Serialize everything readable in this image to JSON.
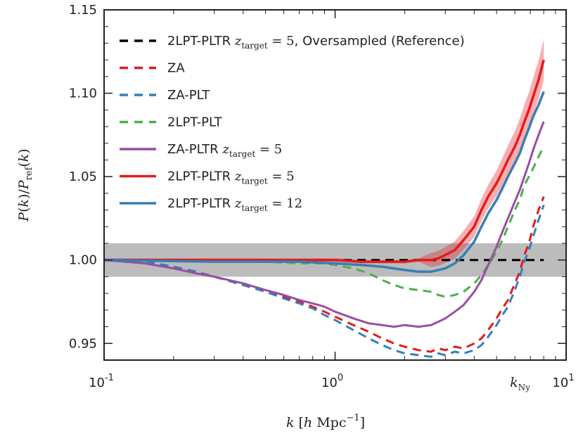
{
  "chart_data": {
    "type": "line",
    "x_scale": "log",
    "xlim": [
      0.1,
      10
    ],
    "ylim": [
      0.94,
      1.15
    ],
    "xlabel": "k [h Mpc^-1]",
    "ylabel": "P(k)/P_ref(k)",
    "x_tick_labels": [
      "10^-1",
      "10^0",
      "10^1"
    ],
    "x_tick_label_parts": [
      {
        "base": "10",
        "exp": "-1"
      },
      {
        "base": "10",
        "exp": "0"
      },
      {
        "base": "10",
        "exp": "1"
      }
    ],
    "x_tick_values": [
      0.1,
      1,
      10
    ],
    "y_ticks": [
      0.95,
      1.0,
      1.05,
      1.1,
      1.15
    ],
    "y_tick_labels": [
      "0.95",
      "1.00",
      "1.05",
      "1.10",
      "1.15"
    ],
    "annotation": {
      "text": "k_Ny",
      "x": 6.5
    },
    "band": {
      "ymin": 0.99,
      "ymax": 1.01,
      "color": "#b0b0b0"
    },
    "legend": [
      {
        "label": "2LPT-PLTR",
        "math": "z",
        "sub": "target",
        "eq": " = 5",
        "extra": ", Oversampled (Reference)",
        "color": "#000000",
        "style": "dashed"
      },
      {
        "label": "ZA",
        "color": "#e41a1c",
        "style": "dashed"
      },
      {
        "label": "ZA-PLT",
        "color": "#377eb8",
        "style": "dashed"
      },
      {
        "label": "2LPT-PLT",
        "color": "#4daf4a",
        "style": "dashed"
      },
      {
        "label": "ZA-PLTR",
        "math": "z",
        "sub": "target",
        "eq": " = 5",
        "color": "#984ea3",
        "style": "solid"
      },
      {
        "label": "2LPT-PLTR",
        "math": "z",
        "sub": "target",
        "eq": " = 5",
        "color": "#e41a1c",
        "style": "solid"
      },
      {
        "label": "2LPT-PLTR",
        "math": "z",
        "sub": "target",
        "eq": " = 12",
        "color": "#377eb8",
        "style": "solid"
      }
    ],
    "series": [
      {
        "name": "Reference",
        "color": "#000000",
        "style": "dashed",
        "width": 3,
        "points": [
          [
            0.1,
            1.0
          ],
          [
            8.0,
            1.0
          ]
        ]
      },
      {
        "name": "ZA",
        "color": "#e41a1c",
        "style": "dashed",
        "width": 3,
        "points": [
          [
            0.1,
            1.0
          ],
          [
            0.15,
            0.999
          ],
          [
            0.2,
            0.996
          ],
          [
            0.25,
            0.993
          ],
          [
            0.3,
            0.99
          ],
          [
            0.4,
            0.985
          ],
          [
            0.5,
            0.981
          ],
          [
            0.6,
            0.978
          ],
          [
            0.7,
            0.975
          ],
          [
            0.8,
            0.972
          ],
          [
            0.9,
            0.969
          ],
          [
            1.0,
            0.966
          ],
          [
            1.2,
            0.961
          ],
          [
            1.4,
            0.957
          ],
          [
            1.6,
            0.953
          ],
          [
            1.8,
            0.95
          ],
          [
            2.0,
            0.948
          ],
          [
            2.3,
            0.946
          ],
          [
            2.6,
            0.945
          ],
          [
            2.8,
            0.947
          ],
          [
            3.0,
            0.946
          ],
          [
            3.3,
            0.948
          ],
          [
            3.6,
            0.947
          ],
          [
            4.0,
            0.95
          ],
          [
            4.3,
            0.953
          ],
          [
            4.6,
            0.958
          ],
          [
            5.0,
            0.965
          ],
          [
            5.3,
            0.971
          ],
          [
            5.6,
            0.976
          ],
          [
            6.0,
            0.986
          ],
          [
            6.3,
            0.993
          ],
          [
            6.6,
            1.003
          ],
          [
            6.9,
            1.01
          ],
          [
            7.2,
            1.02
          ],
          [
            7.6,
            1.03
          ],
          [
            8.0,
            1.038
          ]
        ]
      },
      {
        "name": "ZA-PLT",
        "color": "#377eb8",
        "style": "dashed",
        "width": 3,
        "points": [
          [
            0.1,
            1.0
          ],
          [
            0.15,
            0.999
          ],
          [
            0.2,
            0.996
          ],
          [
            0.25,
            0.993
          ],
          [
            0.3,
            0.99
          ],
          [
            0.4,
            0.985
          ],
          [
            0.5,
            0.981
          ],
          [
            0.6,
            0.977
          ],
          [
            0.7,
            0.974
          ],
          [
            0.8,
            0.971
          ],
          [
            0.9,
            0.967
          ],
          [
            1.0,
            0.964
          ],
          [
            1.2,
            0.958
          ],
          [
            1.4,
            0.953
          ],
          [
            1.6,
            0.949
          ],
          [
            1.8,
            0.946
          ],
          [
            2.0,
            0.944
          ],
          [
            2.3,
            0.943
          ],
          [
            2.6,
            0.942
          ],
          [
            2.8,
            0.944
          ],
          [
            3.0,
            0.943
          ],
          [
            3.3,
            0.945
          ],
          [
            3.6,
            0.944
          ],
          [
            4.0,
            0.946
          ],
          [
            4.3,
            0.949
          ],
          [
            4.6,
            0.954
          ],
          [
            5.0,
            0.961
          ],
          [
            5.3,
            0.967
          ],
          [
            5.6,
            0.972
          ],
          [
            6.0,
            0.982
          ],
          [
            6.3,
            0.99
          ],
          [
            6.6,
            0.999
          ],
          [
            6.9,
            1.006
          ],
          [
            7.2,
            1.014
          ],
          [
            7.6,
            1.024
          ],
          [
            8.0,
            1.033
          ]
        ]
      },
      {
        "name": "2LPT-PLT",
        "color": "#4daf4a",
        "style": "dashed",
        "width": 3,
        "points": [
          [
            0.1,
            1.0
          ],
          [
            0.3,
            1.0
          ],
          [
            0.5,
            0.999
          ],
          [
            0.7,
            0.998
          ],
          [
            0.9,
            0.998
          ],
          [
            1.0,
            0.997
          ],
          [
            1.2,
            0.995
          ],
          [
            1.4,
            0.992
          ],
          [
            1.6,
            0.988
          ],
          [
            1.8,
            0.985
          ],
          [
            2.0,
            0.983
          ],
          [
            2.3,
            0.982
          ],
          [
            2.6,
            0.981
          ],
          [
            2.8,
            0.979
          ],
          [
            3.0,
            0.978
          ],
          [
            3.3,
            0.979
          ],
          [
            3.6,
            0.981
          ],
          [
            4.0,
            0.986
          ],
          [
            4.3,
            0.991
          ],
          [
            4.6,
            0.997
          ],
          [
            5.0,
            1.005
          ],
          [
            5.3,
            1.012
          ],
          [
            5.6,
            1.02
          ],
          [
            6.0,
            1.03
          ],
          [
            6.3,
            1.036
          ],
          [
            6.6,
            1.045
          ],
          [
            6.9,
            1.05
          ],
          [
            7.2,
            1.055
          ],
          [
            7.6,
            1.062
          ],
          [
            8.0,
            1.068
          ]
        ]
      },
      {
        "name": "ZA-PLTR z=5",
        "color": "#984ea3",
        "style": "solid",
        "width": 3,
        "points": [
          [
            0.1,
            1.0
          ],
          [
            0.15,
            0.998
          ],
          [
            0.2,
            0.995
          ],
          [
            0.25,
            0.992
          ],
          [
            0.3,
            0.99
          ],
          [
            0.4,
            0.986
          ],
          [
            0.5,
            0.982
          ],
          [
            0.6,
            0.979
          ],
          [
            0.7,
            0.976
          ],
          [
            0.8,
            0.974
          ],
          [
            0.9,
            0.972
          ],
          [
            1.0,
            0.969
          ],
          [
            1.2,
            0.965
          ],
          [
            1.4,
            0.962
          ],
          [
            1.6,
            0.961
          ],
          [
            1.8,
            0.96
          ],
          [
            2.0,
            0.961
          ],
          [
            2.3,
            0.96
          ],
          [
            2.6,
            0.961
          ],
          [
            2.8,
            0.963
          ],
          [
            3.0,
            0.965
          ],
          [
            3.3,
            0.969
          ],
          [
            3.6,
            0.973
          ],
          [
            4.0,
            0.981
          ],
          [
            4.3,
            0.988
          ],
          [
            4.6,
            0.997
          ],
          [
            5.0,
            1.008
          ],
          [
            5.3,
            1.017
          ],
          [
            5.6,
            1.025
          ],
          [
            6.0,
            1.035
          ],
          [
            6.3,
            1.042
          ],
          [
            6.6,
            1.05
          ],
          [
            6.9,
            1.058
          ],
          [
            7.2,
            1.066
          ],
          [
            7.6,
            1.075
          ],
          [
            8.0,
            1.083
          ]
        ]
      },
      {
        "name": "2LPT-PLTR z=5",
        "color": "#e41a1c",
        "style": "solid",
        "width": 3.5,
        "points": [
          [
            0.1,
            1.0
          ],
          [
            0.3,
            1.0
          ],
          [
            0.5,
            1.0
          ],
          [
            0.7,
            1.0
          ],
          [
            1.0,
            1.0
          ],
          [
            1.3,
            0.999
          ],
          [
            1.6,
            0.999
          ],
          [
            2.0,
            0.999
          ],
          [
            2.3,
            1.0
          ],
          [
            2.6,
            1.0
          ],
          [
            2.8,
            1.001
          ],
          [
            3.0,
            1.003
          ],
          [
            3.3,
            1.006
          ],
          [
            3.6,
            1.012
          ],
          [
            4.0,
            1.02
          ],
          [
            4.3,
            1.03
          ],
          [
            4.6,
            1.038
          ],
          [
            5.0,
            1.046
          ],
          [
            5.3,
            1.053
          ],
          [
            5.6,
            1.06
          ],
          [
            6.0,
            1.068
          ],
          [
            6.3,
            1.075
          ],
          [
            6.6,
            1.083
          ],
          [
            6.9,
            1.09
          ],
          [
            7.2,
            1.098
          ],
          [
            7.6,
            1.108
          ],
          [
            8.0,
            1.12
          ]
        ]
      },
      {
        "name": "2LPT-PLTR z=12",
        "color": "#377eb8",
        "style": "solid",
        "width": 3.5,
        "points": [
          [
            0.1,
            1.0
          ],
          [
            0.3,
            0.999
          ],
          [
            0.5,
            0.999
          ],
          [
            0.7,
            0.999
          ],
          [
            1.0,
            0.998
          ],
          [
            1.3,
            0.997
          ],
          [
            1.6,
            0.996
          ],
          [
            2.0,
            0.994
          ],
          [
            2.3,
            0.993
          ],
          [
            2.6,
            0.993
          ],
          [
            2.8,
            0.994
          ],
          [
            3.0,
            0.995
          ],
          [
            3.3,
            0.998
          ],
          [
            3.6,
            1.003
          ],
          [
            4.0,
            1.011
          ],
          [
            4.3,
            1.02
          ],
          [
            4.6,
            1.028
          ],
          [
            5.0,
            1.036
          ],
          [
            5.3,
            1.043
          ],
          [
            5.6,
            1.05
          ],
          [
            6.0,
            1.058
          ],
          [
            6.3,
            1.064
          ],
          [
            6.6,
            1.072
          ],
          [
            6.9,
            1.079
          ],
          [
            7.2,
            1.086
          ],
          [
            7.6,
            1.093
          ],
          [
            8.0,
            1.101
          ]
        ]
      }
    ]
  }
}
